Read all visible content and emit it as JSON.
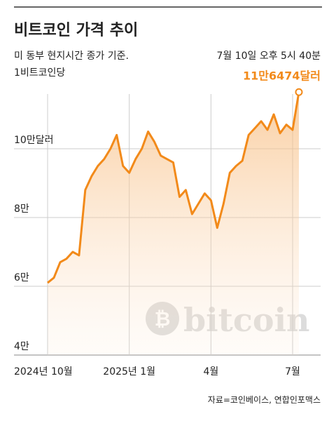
{
  "chart_data": {
    "type": "area",
    "title": "비트코인 가격 추이",
    "subtitle": [
      "미 동부 현지시간 종가 기준.",
      "1비트코인당"
    ],
    "annotation": "7월 10일 오후 5시 40분",
    "source": "자료=코인베이스, 연합인포맥스",
    "watermark": "bitcoin",
    "color": "#f28a1a",
    "categories": [
      "2024년 10월",
      null,
      null,
      null,
      null,
      null,
      null,
      null,
      null,
      null,
      null,
      null,
      null,
      "2025년 1월",
      null,
      null,
      null,
      null,
      null,
      null,
      null,
      null,
      null,
      null,
      null,
      null,
      "4월",
      null,
      null,
      null,
      null,
      null,
      null,
      null,
      null,
      null,
      null,
      null,
      null,
      "7월",
      null
    ],
    "values": [
      61000,
      62500,
      67000,
      68000,
      70000,
      69000,
      88000,
      92000,
      95000,
      97000,
      100000,
      104000,
      95000,
      93000,
      97000,
      100000,
      105000,
      102000,
      98000,
      97000,
      96000,
      86000,
      88000,
      81000,
      84000,
      87000,
      85000,
      77000,
      84000,
      93000,
      95000,
      96500,
      104000,
      106000,
      108000,
      105500,
      110000,
      104500,
      107000,
      105500,
      116474
    ],
    "value_labels": [
      null,
      null,
      null,
      null,
      null,
      null,
      null,
      null,
      null,
      null,
      null,
      null,
      null,
      null,
      null,
      null,
      null,
      null,
      null,
      null,
      null,
      null,
      null,
      null,
      null,
      null,
      null,
      null,
      null,
      null,
      null,
      null,
      null,
      null,
      null,
      null,
      null,
      null,
      null,
      null,
      "11만6474달러"
    ],
    "ylim": [
      40000,
      120000
    ],
    "yticks": [
      {
        "value": 40000,
        "label": "4만"
      },
      {
        "value": 60000,
        "label": "6만"
      },
      {
        "value": 80000,
        "label": "8만"
      },
      {
        "value": 100000,
        "label": "10만달러"
      }
    ],
    "grid": true
  }
}
